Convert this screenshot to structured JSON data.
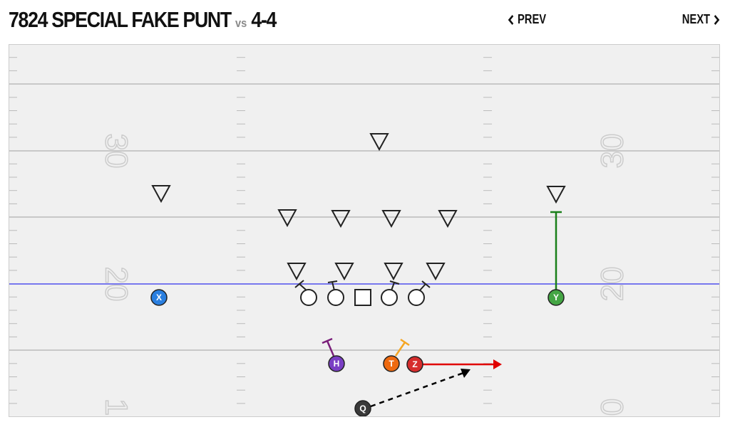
{
  "header": {
    "play_name": "7824 SPECIAL FAKE PUNT",
    "vs_label": "vs",
    "defense": "4-4",
    "prev_label": "PREV",
    "next_label": "NEXT"
  },
  "field": {
    "yard_numbers": [
      "30",
      "20",
      "1",
      "30",
      "20",
      "0"
    ],
    "colors": {
      "field": "#f0f0f0",
      "yard_line": "#bbbbbb",
      "scrimmage": "#7777ee",
      "number": "#cccccc"
    }
  },
  "players": [
    {
      "label": "X",
      "color": "#2a7fe0"
    },
    {
      "label": "Y",
      "color": "#44a544"
    },
    {
      "label": "H",
      "color": "#7a3fc4"
    },
    {
      "label": "T",
      "color": "#ee6a10"
    },
    {
      "label": "Z",
      "color": "#d62d2d"
    },
    {
      "label": "Q",
      "color": "#3a3a3a"
    }
  ],
  "route_colors": {
    "Y": "#1a7f1a",
    "H": "#7a1f7a",
    "T": "#f5a623",
    "Z": "#e00000",
    "Q": "#000000"
  }
}
